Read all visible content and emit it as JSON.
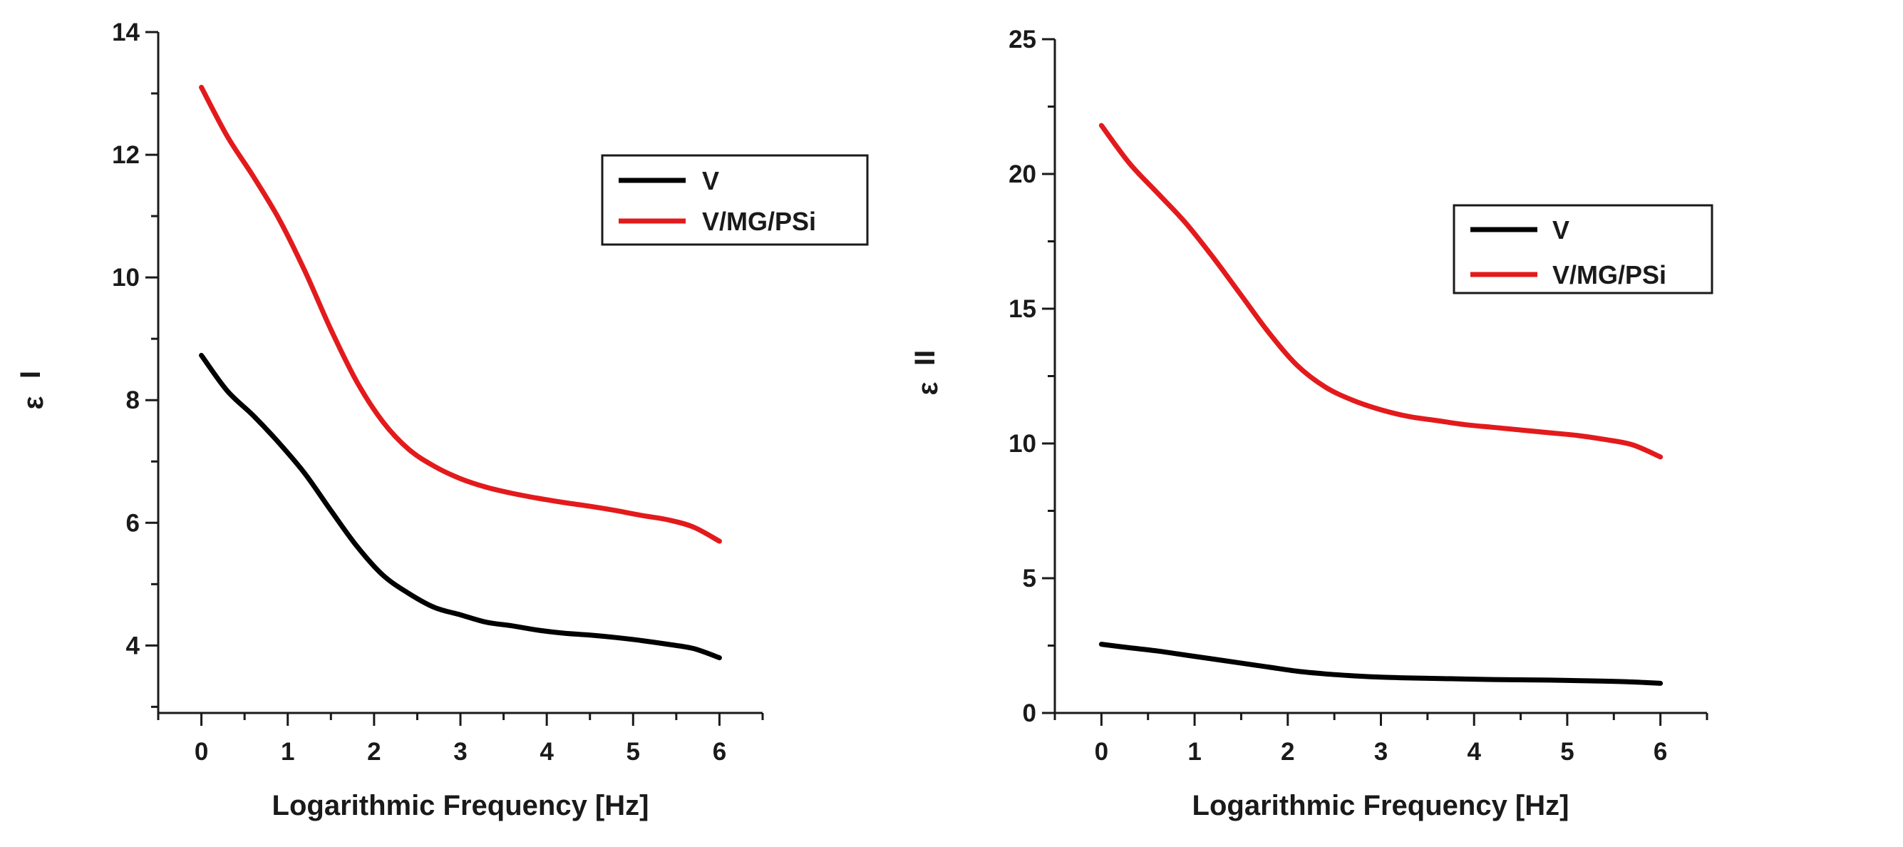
{
  "colors": {
    "V": "#000000",
    "V/MG/PSi": "#e31a1c",
    "axis": "#1a1a1a"
  },
  "chart_data": [
    {
      "type": "line",
      "title": "",
      "xlabel": "Logarithmic Frequency [Hz]",
      "ylabel": "ε",
      "ylabel_mark": "I",
      "xlim": [
        -0.5,
        6.5
      ],
      "ylim": [
        2.9,
        14
      ],
      "xticks": [
        0,
        1,
        2,
        3,
        4,
        5,
        6
      ],
      "yticks": [
        4,
        6,
        8,
        10,
        12,
        14
      ],
      "legend_position": "upper-right",
      "grid": false,
      "series": [
        {
          "name": "V",
          "color": "#000000",
          "x": [
            0,
            0.3,
            0.6,
            0.9,
            1.2,
            1.5,
            1.8,
            2.1,
            2.4,
            2.7,
            3.0,
            3.3,
            3.6,
            3.9,
            4.2,
            4.5,
            4.8,
            5.1,
            5.4,
            5.7,
            6.0
          ],
          "y": [
            8.73,
            8.15,
            7.75,
            7.3,
            6.8,
            6.2,
            5.62,
            5.15,
            4.85,
            4.62,
            4.5,
            4.38,
            4.32,
            4.25,
            4.2,
            4.17,
            4.13,
            4.08,
            4.02,
            3.95,
            3.8
          ]
        },
        {
          "name": "V/MG/PSi",
          "color": "#e31a1c",
          "x": [
            0,
            0.3,
            0.6,
            0.9,
            1.2,
            1.5,
            1.8,
            2.1,
            2.4,
            2.7,
            3.0,
            3.3,
            3.6,
            3.9,
            4.2,
            4.5,
            4.8,
            5.1,
            5.4,
            5.7,
            6.0
          ],
          "y": [
            13.1,
            12.3,
            11.65,
            10.95,
            10.1,
            9.15,
            8.3,
            7.65,
            7.2,
            6.92,
            6.72,
            6.58,
            6.48,
            6.4,
            6.33,
            6.27,
            6.2,
            6.12,
            6.05,
            5.93,
            5.7
          ]
        }
      ]
    },
    {
      "type": "line",
      "title": "",
      "xlabel": "Logarithmic Frequency [Hz]",
      "ylabel": "ε",
      "ylabel_mark": "II",
      "xlim": [
        -0.5,
        6.5
      ],
      "ylim": [
        0,
        25
      ],
      "xticks": [
        0,
        1,
        2,
        3,
        4,
        5,
        6
      ],
      "yticks": [
        0,
        5,
        10,
        15,
        20,
        25
      ],
      "legend_position": "upper-right",
      "grid": false,
      "series": [
        {
          "name": "V",
          "color": "#000000",
          "x": [
            0,
            0.3,
            0.6,
            0.9,
            1.2,
            1.5,
            1.8,
            2.1,
            2.4,
            2.7,
            3.0,
            3.3,
            3.6,
            3.9,
            4.2,
            4.5,
            4.8,
            5.1,
            5.4,
            5.7,
            6.0
          ],
          "y": [
            2.55,
            2.42,
            2.3,
            2.15,
            2.0,
            1.85,
            1.7,
            1.55,
            1.45,
            1.38,
            1.33,
            1.3,
            1.28,
            1.26,
            1.24,
            1.23,
            1.22,
            1.2,
            1.18,
            1.15,
            1.1
          ]
        },
        {
          "name": "V/MG/PSi",
          "color": "#e31a1c",
          "x": [
            0,
            0.3,
            0.6,
            0.9,
            1.2,
            1.5,
            1.8,
            2.1,
            2.4,
            2.7,
            3.0,
            3.3,
            3.6,
            3.9,
            4.2,
            4.5,
            4.8,
            5.1,
            5.4,
            5.7,
            6.0
          ],
          "y": [
            21.8,
            20.4,
            19.3,
            18.2,
            16.9,
            15.5,
            14.1,
            12.9,
            12.1,
            11.6,
            11.25,
            11.0,
            10.85,
            10.7,
            10.6,
            10.5,
            10.4,
            10.3,
            10.15,
            9.95,
            9.5
          ]
        }
      ]
    }
  ]
}
